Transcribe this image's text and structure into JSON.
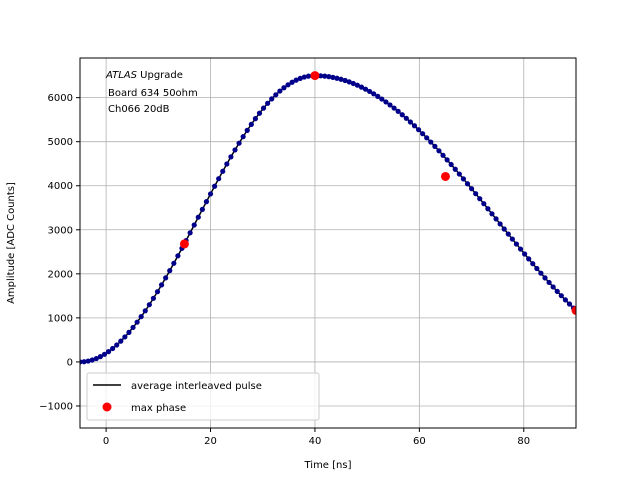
{
  "chart_data": {
    "type": "scatter",
    "annotation": {
      "lines": [
        "ATLAS Upgrade",
        "Board 634 50ohm",
        "Ch066 20dB"
      ],
      "italic_word": "ATLAS",
      "placement": "top-left"
    },
    "xlabel": "Time [ns]",
    "ylabel": "Amplitude [ADC Counts]",
    "xlim": [
      -5,
      90
    ],
    "ylim": [
      -1500,
      6900
    ],
    "xticks": [
      0,
      20,
      40,
      60,
      80
    ],
    "yticks": [
      -1000,
      0,
      1000,
      2000,
      3000,
      4000,
      5000,
      6000
    ],
    "ytick_labels": [
      "−1000",
      "0",
      "1000",
      "2000",
      "3000",
      "4000",
      "5000",
      "6000"
    ],
    "grid": true,
    "legend": {
      "placement": "lower-left",
      "entries": [
        {
          "label": "average interleaved pulse",
          "marker": "line",
          "color": "#000000"
        },
        {
          "label": "max phase",
          "marker": "circle",
          "color": "#ff0000"
        }
      ]
    },
    "pulse": {
      "model": "raised-cosine pulse with peak 6500 at t=40 ns, baseline 0 at t=-5 ns, value 1170 at t=90 ns",
      "peak_time_ns": 40,
      "peak_value": 6500,
      "sample_step_ns": 0.78125,
      "x_start": -5,
      "x_end": 90
    },
    "series": [
      {
        "name": "max phase",
        "color": "#ff0000",
        "points": [
          {
            "x": 15,
            "y": 2680
          },
          {
            "x": 40,
            "y": 6500
          },
          {
            "x": 65,
            "y": 4210
          },
          {
            "x": 90,
            "y": 1170
          }
        ]
      }
    ],
    "colors": {
      "samples": "#00008b",
      "line": "#000000",
      "max_phase": "#ff0000",
      "grid": "#b0b0b0"
    }
  }
}
